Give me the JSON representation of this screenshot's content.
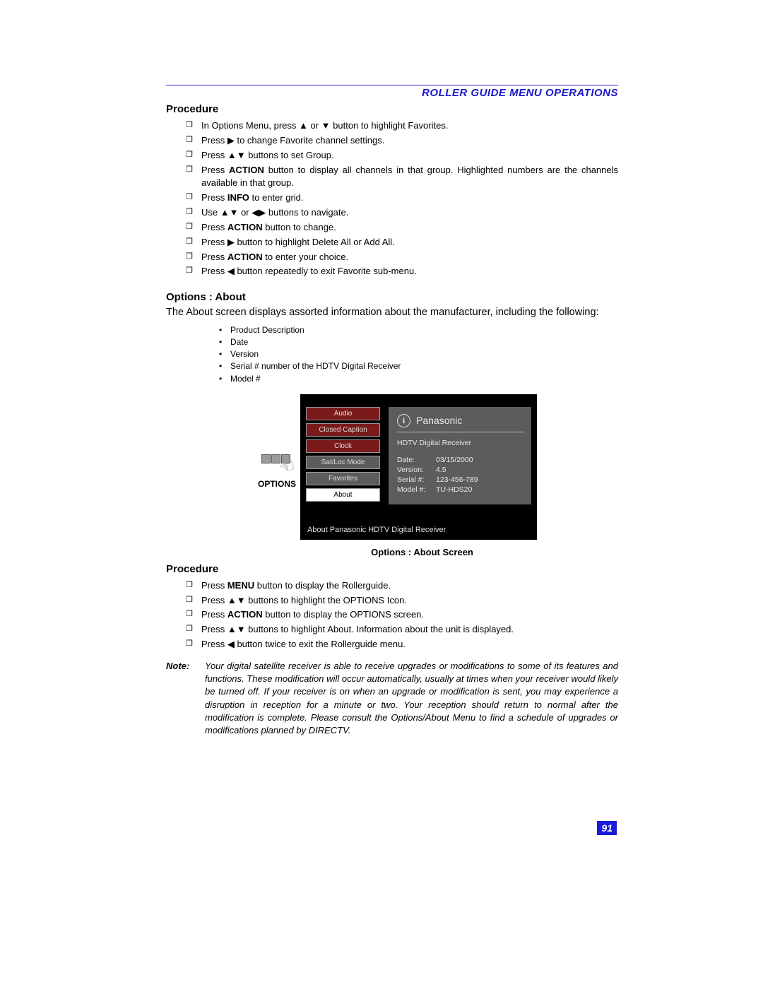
{
  "header": {
    "title": "ROLLER GUIDE MENU OPERATIONS",
    "color": "#1818c8"
  },
  "proc1": {
    "heading": "Procedure",
    "items": [
      "In Options Menu, press  ▲   or ▼ button to highlight Favorites.",
      "Press ▶ to change Favorite channel settings.",
      "Press ▲▼ buttons to set Group.",
      "Press ACTION button to display all channels in that group. Highlighted numbers are the channels available in that group.",
      "Press INFO to enter grid.",
      " Use   ▲▼   or  ◀▶  buttons to navigate.",
      "Press ACTION button to change.",
      "Press ▶ button to highlight Delete All or Add All.",
      "Press ACTION to enter your choice.",
      "Press ◀ button repeatedly to exit Favorite sub-menu."
    ]
  },
  "about": {
    "heading": "Options : About",
    "intro": "The About screen displays assorted information about the manufacturer, including the following:",
    "bullets": [
      "Product Description",
      "Date",
      "Version",
      "Serial # number of the HDTV Digital Receiver",
      "Model #"
    ]
  },
  "tv": {
    "options_label": "OPTIONS",
    "menu": [
      {
        "label": "Audio",
        "cls": "menu-red"
      },
      {
        "label": "Closed Caption",
        "cls": "menu-red"
      },
      {
        "label": "Clock",
        "cls": "menu-red"
      },
      {
        "label": "Sat/Loc Mode",
        "cls": "menu-gray"
      },
      {
        "label": "Favorites",
        "cls": "menu-gray"
      },
      {
        "label": "About",
        "cls": "menu-white"
      }
    ],
    "info_title": "Panasonic",
    "info_desc": "HDTV Digital Receiver",
    "rows": [
      {
        "k": "Date:",
        "v": "03/15/2000"
      },
      {
        "k": "Version:",
        "v": "4.5"
      },
      {
        "k": "Serial #:",
        "v": "123-456-789"
      },
      {
        "k": "Model #:",
        "v": "TU-HDS20"
      }
    ],
    "footer": "About Panasonic HDTV Digital Receiver",
    "caption": "Options : About Screen"
  },
  "proc2": {
    "heading": "Procedure",
    "items": [
      "Press MENU button to display the Rollerguide.",
      "Press ▲▼ buttons to highlight the OPTIONS Icon.",
      "Press ACTION button to display the OPTIONS screen.",
      "Press ▲▼ buttons to highlight About. Information about the unit is displayed.",
      "Press  ◀  button twice to exit the Rollerguide menu."
    ]
  },
  "note": {
    "label": "Note:",
    "text": "Your digital satellite receiver is able to receive upgrades or modifications to some of its features and functions. These modification will occur automatically, usually at times when your receiver would likely be turned off. If your receiver is on when an upgrade or modification is sent, you may experience a disruption in reception for a minute or two. Your reception should return to normal after the modification is complete. Please consult the Options/About Menu to find a schedule of upgrades or modifications planned by DIRECTV."
  },
  "page_number": "91"
}
